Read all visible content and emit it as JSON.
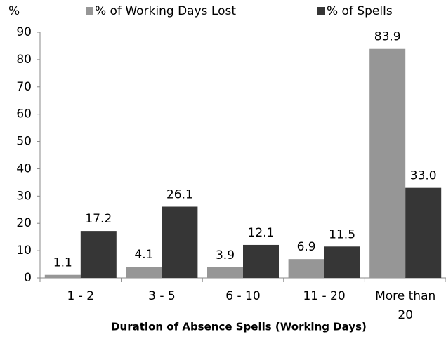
{
  "chart_data": {
    "type": "bar",
    "y_label": "%",
    "x_label": "Duration of Absence Spells (Working Days)",
    "categories": [
      "1 - 2",
      "3 - 5",
      "6 - 10",
      "11 - 20",
      "More than 20"
    ],
    "series": [
      {
        "name": "% of Working Days Lost",
        "color": "#969696",
        "values": [
          1.1,
          4.1,
          3.9,
          6.9,
          83.9
        ],
        "value_labels": [
          "1.1",
          "4.1",
          "3.9",
          "6.9",
          "83.9"
        ]
      },
      {
        "name": "% of Spells",
        "color": "#363636",
        "values": [
          17.2,
          26.1,
          12.1,
          11.5,
          33.0
        ],
        "value_labels": [
          "17.2",
          "26.1",
          "12.1",
          "11.5",
          "33.0"
        ]
      }
    ],
    "ylim": [
      0,
      90
    ],
    "yticks": [
      0,
      10,
      20,
      30,
      40,
      50,
      60,
      70,
      80,
      90
    ],
    "grid": false,
    "legend": "top"
  }
}
